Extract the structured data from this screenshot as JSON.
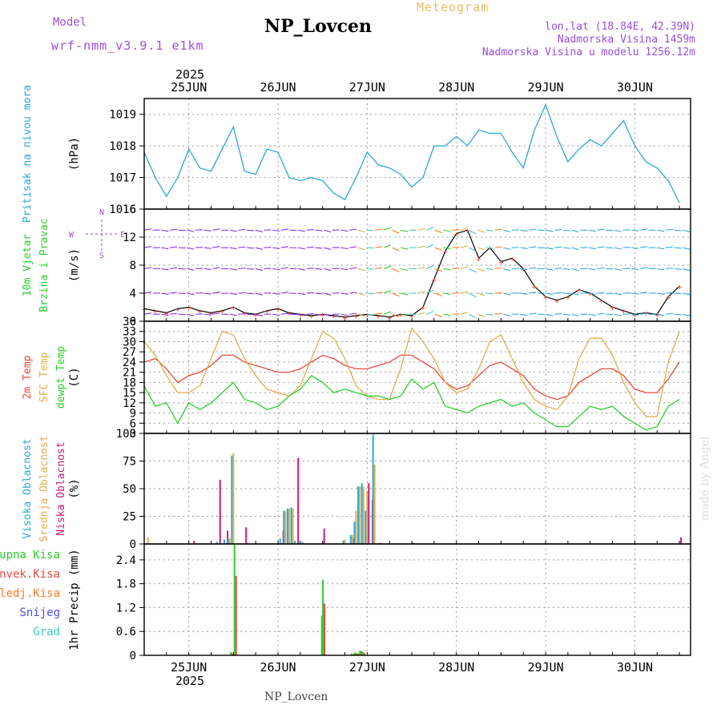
{
  "header": {
    "model_label": "Model",
    "model_name": "wrf-nmm_v3.9.1 e1km",
    "station": "NP_Lovcen",
    "app_title": "Meteogram",
    "coords": "lon,lat (18.84E, 42.39N)",
    "elevation": "Nadmorska Visina 1459m",
    "elevation_model": "Nadmorska Visina u modelu 1256.12m"
  },
  "footer": {
    "station": "NP_Lovcen",
    "credit": "made by Angel"
  },
  "colors": {
    "pressure": "#2aa7dc",
    "t2m": "#e84a3c",
    "sfc": "#e2ad4c",
    "dew": "#2ccf2c",
    "high_cloud": "#2aa7dc",
    "mid_cloud": "#e2ad4c",
    "low_cloud": "#d0187a",
    "total": "#2ccf2c",
    "conv": "#e84a3c",
    "frz": "#ff7a1a",
    "snow": "#5050e0",
    "hail": "#3cc8c8"
  },
  "chart_data": [
    {
      "type": "line",
      "id": "pressure",
      "ylabel": "(hPa)",
      "side_labels": [
        "Pritisak na nivou mora"
      ],
      "yticks": [
        1016,
        1017,
        1018,
        1019
      ],
      "ylim": [
        1016,
        1019.5
      ],
      "x_days": [
        "25JUN",
        "26JUN",
        "27JUN",
        "28JUN",
        "29JUN",
        "30JUN"
      ],
      "year": "2025",
      "x_hours": [
        0,
        3,
        6,
        9,
        12,
        15,
        18,
        21,
        24,
        27,
        30,
        33,
        36,
        39,
        42,
        45,
        48,
        51,
        54,
        57,
        60,
        63,
        66,
        69,
        72,
        75,
        78,
        81,
        84,
        87,
        90,
        93,
        96,
        99,
        102,
        105,
        108,
        111,
        114,
        117,
        120,
        123,
        126,
        129,
        132,
        135,
        138,
        141,
        144
      ],
      "series": [
        {
          "key": "pressure",
          "values": [
            1017.8,
            1017.0,
            1016.4,
            1017.0,
            1017.9,
            1017.3,
            1017.2,
            1017.9,
            1018.6,
            1017.2,
            1017.1,
            1017.9,
            1017.8,
            1017.0,
            1016.9,
            1017.0,
            1016.9,
            1016.5,
            1016.3,
            1017.0,
            1017.8,
            1017.4,
            1017.3,
            1017.1,
            1016.7,
            1017.0,
            1018.0,
            1018.0,
            1018.3,
            1018.0,
            1018.5,
            1018.4,
            1018.4,
            1017.8,
            1017.3,
            1018.5,
            1019.3,
            1018.3,
            1017.5,
            1017.9,
            1018.2,
            1018.0,
            1018.4,
            1018.8,
            1018.0,
            1017.5,
            1017.3,
            1016.9,
            1016.2
          ]
        }
      ]
    },
    {
      "type": "barbs",
      "id": "wind",
      "ylabel": "(m/s)",
      "side_labels": [
        "10m Vjetar",
        "Brzina i Pravac"
      ],
      "compass": {
        "n": "N",
        "s": "S",
        "e": "E",
        "w": "W"
      },
      "yticks": [
        0,
        4,
        8,
        12,
        16
      ],
      "ylim": [
        0,
        16
      ],
      "x_hours": [
        0,
        3,
        6,
        9,
        12,
        15,
        18,
        21,
        24,
        27,
        30,
        33,
        36,
        39,
        42,
        45,
        48,
        51,
        54,
        57,
        60,
        63,
        66,
        69,
        72,
        75,
        78,
        81,
        84,
        87,
        90,
        93,
        96,
        99,
        102,
        105,
        108,
        111,
        114,
        117,
        120,
        123,
        126,
        129,
        132,
        135,
        138,
        141,
        144
      ],
      "series": [
        {
          "name": "speed",
          "values": [
            1.8,
            1.5,
            1.2,
            1.8,
            2.0,
            1.5,
            1.2,
            1.5,
            2.0,
            1.2,
            1.0,
            1.5,
            1.8,
            1.2,
            1.0,
            0.8,
            1.0,
            0.8,
            0.6,
            0.8,
            1.0,
            0.8,
            0.6,
            1.0,
            0.8,
            2.0,
            6.0,
            10.0,
            12.5,
            13.0,
            9.0,
            10.5,
            8.5,
            9.0,
            7.5,
            5.0,
            3.5,
            3.0,
            3.5,
            4.5,
            4.0,
            3.0,
            2.0,
            1.5,
            1.0,
            1.2,
            1.0,
            3.5,
            5.0
          ]
        }
      ]
    },
    {
      "type": "line",
      "id": "temperature",
      "ylabel": "(C)",
      "side_labels": [
        "2m Temp",
        "SFC Temp",
        "dewpt Temp"
      ],
      "yticks": [
        3,
        6,
        9,
        12,
        15,
        18,
        21,
        24,
        27,
        30,
        33,
        36
      ],
      "ylim": [
        3,
        36
      ],
      "x_hours": [
        0,
        3,
        6,
        9,
        12,
        15,
        18,
        21,
        24,
        27,
        30,
        33,
        36,
        39,
        42,
        45,
        48,
        51,
        54,
        57,
        60,
        63,
        66,
        69,
        72,
        75,
        78,
        81,
        84,
        87,
        90,
        93,
        96,
        99,
        102,
        105,
        108,
        111,
        114,
        117,
        120,
        123,
        126,
        129,
        132,
        135,
        138,
        141,
        144
      ],
      "series": [
        {
          "key": "t2m",
          "values": [
            24,
            25,
            22,
            18,
            20,
            21,
            23,
            26,
            26,
            24,
            23,
            22,
            21,
            21,
            22,
            24,
            26,
            25,
            23,
            22,
            22,
            23,
            24,
            26,
            26,
            24,
            22,
            18,
            16,
            17,
            20,
            23,
            24,
            22,
            20,
            16,
            14,
            13,
            14,
            18,
            20,
            22,
            22,
            20,
            16,
            15,
            15,
            19,
            24
          ]
        },
        {
          "key": "sfc",
          "values": [
            30,
            26,
            20,
            15,
            15,
            17,
            25,
            33,
            32,
            25,
            20,
            16,
            15,
            14,
            17,
            25,
            33,
            31,
            25,
            17,
            14,
            13,
            13,
            22,
            34,
            30,
            25,
            18,
            15,
            16,
            22,
            30,
            32,
            25,
            18,
            13,
            11,
            10,
            14,
            25,
            31,
            31,
            26,
            18,
            12,
            8,
            8,
            24,
            33
          ]
        },
        {
          "key": "dew",
          "values": [
            17,
            11,
            12,
            6,
            12,
            10,
            12,
            15,
            18,
            13,
            12,
            10,
            11,
            14,
            16,
            20,
            18,
            15,
            16,
            15,
            14,
            14,
            13,
            14,
            19,
            16,
            18,
            11,
            10,
            9,
            11,
            12,
            13,
            11,
            12,
            9,
            7,
            5,
            5,
            8,
            11,
            10,
            11,
            8,
            6,
            4,
            5,
            11,
            13
          ]
        }
      ]
    },
    {
      "type": "bar",
      "id": "cloud",
      "ylabel": "(%)",
      "side_labels": [
        "Visoka Oblacnost",
        "Srednja Oblacnost",
        "Niska Oblacnost"
      ],
      "yticks": [
        0,
        25,
        50,
        75,
        100
      ],
      "ylim": [
        0,
        100
      ],
      "x_hours": [
        1,
        13,
        20,
        22,
        23,
        24,
        27,
        37,
        38,
        39,
        40,
        41,
        43,
        48,
        54,
        56,
        57,
        58,
        59,
        60,
        61,
        62,
        63,
        72,
        144
      ],
      "series": [
        {
          "key": "high_cloud",
          "values": [
            0,
            0,
            2,
            4,
            5,
            80,
            0,
            5,
            30,
            32,
            33,
            3,
            2,
            0,
            3,
            8,
            20,
            52,
            55,
            30,
            0,
            99,
            0,
            0,
            0
          ]
        },
        {
          "key": "mid_cloud",
          "values": [
            6,
            0,
            0,
            0,
            5,
            82,
            0,
            0,
            30,
            32,
            32,
            0,
            0,
            0,
            4,
            8,
            30,
            52,
            52,
            48,
            0,
            72,
            0,
            0,
            0
          ]
        },
        {
          "key": "low_cloud",
          "values": [
            0,
            3,
            58,
            12,
            0,
            0,
            15,
            12,
            0,
            0,
            0,
            78,
            0,
            14,
            0,
            5,
            0,
            0,
            0,
            55,
            40,
            0,
            1,
            1,
            6
          ]
        }
      ]
    },
    {
      "type": "bar",
      "id": "precip",
      "ylabel": "1hr Precip (mm)",
      "side_labels": [
        "Ukupna Kisa",
        "Konvek.Kisa",
        "Zaledj.Kisa",
        "Snijeg",
        "Grad"
      ],
      "yticks": [
        0,
        0.6,
        1.2,
        1.8,
        2.4
      ],
      "ylim": [
        0,
        2.8
      ],
      "x_hours": [
        23.5,
        24.5,
        48.0,
        48.3,
        56.0,
        56.8,
        57.5,
        58.3,
        59.0
      ],
      "series": [
        {
          "key": "total",
          "values": [
            0.08,
            2.8,
            1.0,
            1.9,
            0.05,
            0.07,
            0.06,
            0.12,
            0.08
          ]
        },
        {
          "key": "conv",
          "values": [
            0.05,
            2.0,
            0.3,
            1.3,
            0.03,
            0.05,
            0.04,
            0.1,
            0.06
          ]
        }
      ]
    }
  ]
}
